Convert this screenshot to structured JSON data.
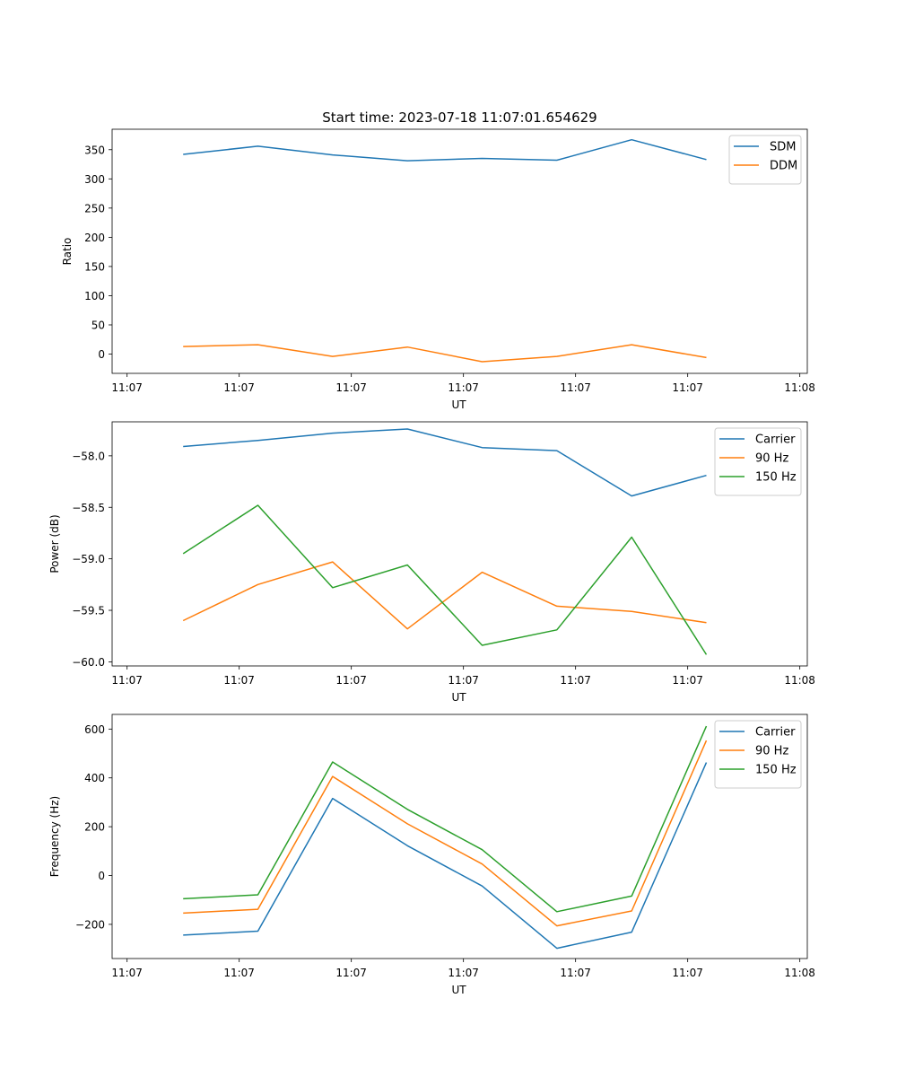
{
  "figure": {
    "title": "Start time: 2023-07-18 11:07:01.654629"
  },
  "chart_data": [
    {
      "type": "line",
      "xlabel": "UT",
      "ylabel": "Ratio",
      "xlim": [
        -0.2,
        9.1
      ],
      "ylim": [
        -33,
        385
      ],
      "x": [
        0.75,
        1.75,
        2.75,
        3.75,
        4.75,
        5.75,
        6.75,
        7.75
      ],
      "xticks": [
        {
          "pos": 0,
          "label": "11:07"
        },
        {
          "pos": 1.5,
          "label": "11:07"
        },
        {
          "pos": 3,
          "label": "11:07"
        },
        {
          "pos": 4.5,
          "label": "11:07"
        },
        {
          "pos": 6,
          "label": "11:07"
        },
        {
          "pos": 7.5,
          "label": "11:07"
        },
        {
          "pos": 9,
          "label": "11:08"
        }
      ],
      "yticks": [
        {
          "pos": 0,
          "label": "0"
        },
        {
          "pos": 50,
          "label": "50"
        },
        {
          "pos": 100,
          "label": "100"
        },
        {
          "pos": 150,
          "label": "150"
        },
        {
          "pos": 200,
          "label": "200"
        },
        {
          "pos": 250,
          "label": "250"
        },
        {
          "pos": 300,
          "label": "300"
        },
        {
          "pos": 350,
          "label": "350"
        }
      ],
      "legend_position": "top-right",
      "series": [
        {
          "name": "SDM",
          "color": "#1f77b4",
          "values": [
            342,
            356,
            341,
            331,
            335,
            332,
            367,
            333
          ]
        },
        {
          "name": "DDM",
          "color": "#ff7f0e",
          "values": [
            13,
            16,
            -4,
            12,
            -13,
            -4,
            16,
            -6
          ]
        }
      ]
    },
    {
      "type": "line",
      "xlabel": "UT",
      "ylabel": "Power (dB)",
      "xlim": [
        -0.2,
        9.1
      ],
      "ylim": [
        -60.04,
        -57.67
      ],
      "x": [
        0.75,
        1.75,
        2.75,
        3.75,
        4.75,
        5.75,
        6.75,
        7.75
      ],
      "xticks": [
        {
          "pos": 0,
          "label": "11:07"
        },
        {
          "pos": 1.5,
          "label": "11:07"
        },
        {
          "pos": 3,
          "label": "11:07"
        },
        {
          "pos": 4.5,
          "label": "11:07"
        },
        {
          "pos": 6,
          "label": "11:07"
        },
        {
          "pos": 7.5,
          "label": "11:07"
        },
        {
          "pos": 9,
          "label": "11:08"
        }
      ],
      "yticks": [
        {
          "pos": -60.0,
          "label": "−60.0"
        },
        {
          "pos": -59.5,
          "label": "−59.5"
        },
        {
          "pos": -59.0,
          "label": "−59.0"
        },
        {
          "pos": -58.5,
          "label": "−58.5"
        },
        {
          "pos": -58.0,
          "label": "−58.0"
        }
      ],
      "legend_position": "top-right",
      "series": [
        {
          "name": "Carrier",
          "color": "#1f77b4",
          "values": [
            -57.91,
            -57.85,
            -57.78,
            -57.74,
            -57.92,
            -57.95,
            -58.39,
            -58.19
          ]
        },
        {
          "name": "90 Hz",
          "color": "#ff7f0e",
          "values": [
            -59.6,
            -59.25,
            -59.03,
            -59.68,
            -59.13,
            -59.46,
            -59.51,
            -59.62
          ]
        },
        {
          "name": "150 Hz",
          "color": "#2ca02c",
          "values": [
            -58.95,
            -58.48,
            -59.28,
            -59.06,
            -59.84,
            -59.69,
            -58.79,
            -59.93
          ]
        }
      ]
    },
    {
      "type": "line",
      "xlabel": "UT",
      "ylabel": "Frequency (Hz)",
      "xlim": [
        -0.2,
        9.1
      ],
      "ylim": [
        -340,
        660
      ],
      "x": [
        0.75,
        1.75,
        2.75,
        3.75,
        4.75,
        5.75,
        6.75,
        7.75
      ],
      "xticks": [
        {
          "pos": 0,
          "label": "11:07"
        },
        {
          "pos": 1.5,
          "label": "11:07"
        },
        {
          "pos": 3,
          "label": "11:07"
        },
        {
          "pos": 4.5,
          "label": "11:07"
        },
        {
          "pos": 6,
          "label": "11:07"
        },
        {
          "pos": 7.5,
          "label": "11:07"
        },
        {
          "pos": 9,
          "label": "11:08"
        }
      ],
      "yticks": [
        {
          "pos": -200,
          "label": "−200"
        },
        {
          "pos": 0,
          "label": "0"
        },
        {
          "pos": 200,
          "label": "200"
        },
        {
          "pos": 400,
          "label": "400"
        },
        {
          "pos": 600,
          "label": "600"
        }
      ],
      "legend_position": "top-right",
      "series": [
        {
          "name": "Carrier",
          "color": "#1f77b4",
          "values": [
            -244,
            -228,
            316,
            122,
            -43,
            -298,
            -232,
            463
          ]
        },
        {
          "name": "90 Hz",
          "color": "#ff7f0e",
          "values": [
            -154,
            -138,
            406,
            212,
            47,
            -206,
            -145,
            553
          ]
        },
        {
          "name": "150 Hz",
          "color": "#2ca02c",
          "values": [
            -95,
            -79,
            465,
            271,
            106,
            -148,
            -84,
            612
          ]
        }
      ]
    }
  ]
}
